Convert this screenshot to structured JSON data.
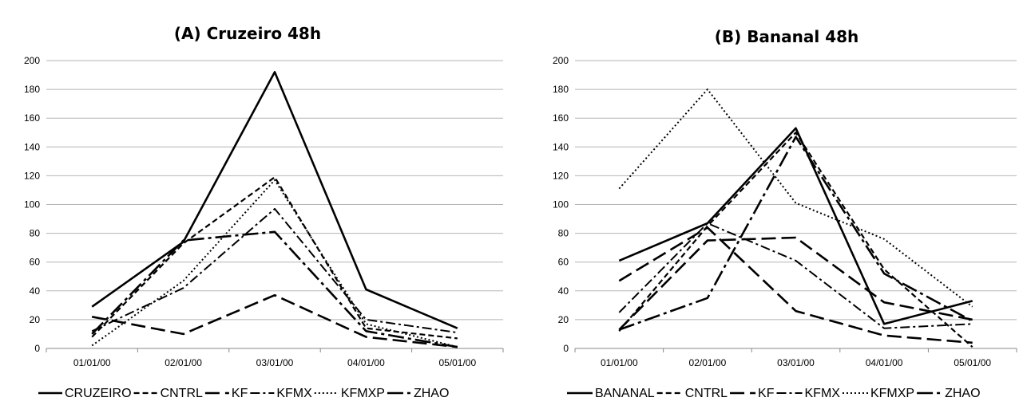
{
  "chart_data": [
    {
      "type": "line",
      "title": "(A) Cruzeiro 48h",
      "categories": [
        "01/01/00",
        "02/01/00",
        "03/01/00",
        "04/01/00",
        "05/01/00"
      ],
      "ylim": [
        0,
        200
      ],
      "yticks": [
        0,
        20,
        40,
        60,
        80,
        100,
        120,
        140,
        160,
        180,
        200
      ],
      "grid": true,
      "legend_position": "bottom",
      "series": [
        {
          "name": "CRUZEIRO",
          "style": "solid",
          "values": [
            29,
            74,
            192,
            41,
            14
          ]
        },
        {
          "name": "CNTRL",
          "style": "short-dash",
          "values": [
            8,
            73,
            119,
            14,
            7
          ]
        },
        {
          "name": "KF",
          "style": "long-dash",
          "values": [
            22,
            10,
            37,
            8,
            1
          ]
        },
        {
          "name": "KFMX",
          "style": "dash-dot",
          "values": [
            12,
            42,
            97,
            20,
            11
          ]
        },
        {
          "name": "KFMXP",
          "style": "dotted",
          "values": [
            2,
            47,
            117,
            17,
            1
          ]
        },
        {
          "name": "ZHAO",
          "style": "long-dash-dot",
          "values": [
            10,
            75,
            81,
            12,
            1
          ]
        }
      ]
    },
    {
      "type": "line",
      "title": "(B) Bananal 48h",
      "categories": [
        "01/01/00",
        "02/01/00",
        "03/01/00",
        "04/01/00",
        "05/01/00"
      ],
      "ylim": [
        0,
        200
      ],
      "yticks": [
        0,
        20,
        40,
        60,
        80,
        100,
        120,
        140,
        160,
        180,
        200
      ],
      "grid": true,
      "legend_position": "bottom",
      "series": [
        {
          "name": "BANANAL",
          "style": "solid",
          "values": [
            61,
            87,
            153,
            17,
            33
          ]
        },
        {
          "name": "CNTRL",
          "style": "short-dash",
          "values": [
            12,
            85,
            150,
            55,
            1
          ]
        },
        {
          "name": "KF",
          "style": "long-dash",
          "values": [
            47,
            84,
            26,
            9,
            4
          ]
        },
        {
          "name": "KFMX",
          "style": "dash-dot",
          "values": [
            25,
            87,
            61,
            14,
            17
          ]
        },
        {
          "name": "KFMXP",
          "style": "dotted",
          "values": [
            111,
            180,
            101,
            76,
            29
          ]
        },
        {
          "name": "ZHAO",
          "style": "long-dash-dot",
          "values": [
            13,
            35,
            147,
            52,
            19
          ]
        }
      ]
    }
  ],
  "series_extra_b": {
    "KF2": [
      13,
      75,
      77,
      32,
      20
    ]
  }
}
